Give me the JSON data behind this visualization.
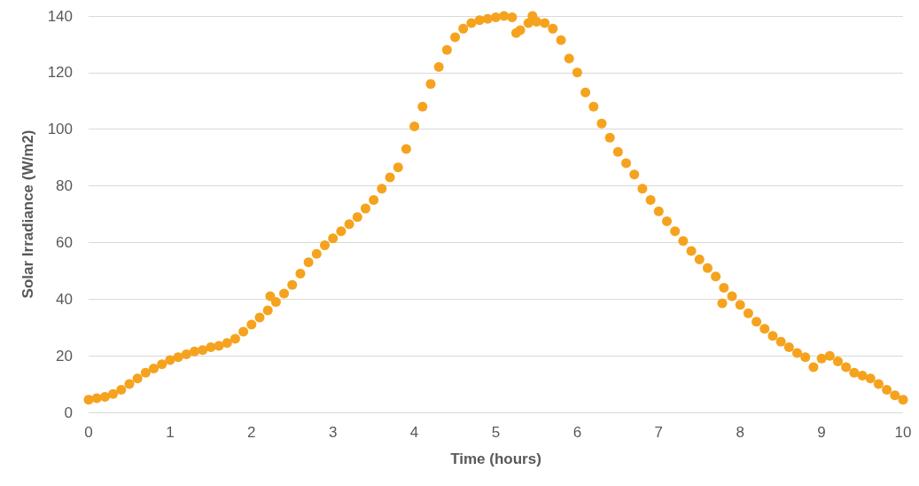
{
  "chart_data": {
    "type": "scatter",
    "xlabel": "Time (hours)",
    "ylabel": "Solar Irradiance (W/m2)",
    "marker": "circle",
    "grid": "y",
    "xlim": [
      0,
      10
    ],
    "xticks": [
      0,
      1,
      2,
      3,
      4,
      5,
      6,
      7,
      8,
      9,
      10
    ],
    "ylim": [
      0,
      140
    ],
    "yticks": [
      0,
      20,
      40,
      60,
      80,
      100,
      120,
      140
    ],
    "series": [
      {
        "color": "#f5a31e",
        "x": [
          0,
          0.1,
          0.2,
          0.3,
          0.4,
          0.5,
          0.6,
          0.7,
          0.8,
          0.9,
          1,
          1.1,
          1.2,
          1.3,
          1.4,
          1.5,
          1.6,
          1.7,
          1.8,
          1.9,
          2,
          2.1,
          2.2,
          2.23,
          2.3,
          2.4,
          2.5,
          2.6,
          2.7,
          2.8,
          2.9,
          3,
          3.1,
          3.2,
          3.3,
          3.4,
          3.5,
          3.6,
          3.7,
          3.8,
          3.9,
          4,
          4.1,
          4.2,
          4.3,
          4.4,
          4.5,
          4.6,
          4.7,
          4.8,
          4.9,
          5,
          5.1,
          5.2,
          5.25,
          5.3,
          5.4,
          5.45,
          5.5,
          5.6,
          5.7,
          5.8,
          5.9,
          6,
          6.1,
          6.2,
          6.3,
          6.4,
          6.5,
          6.6,
          6.7,
          6.8,
          6.9,
          7,
          7.1,
          7.2,
          7.3,
          7.4,
          7.5,
          7.6,
          7.7,
          7.78,
          7.8,
          7.9,
          8,
          8.1,
          8.2,
          8.3,
          8.4,
          8.5,
          8.6,
          8.7,
          8.8,
          8.9,
          9,
          9.1,
          9.2,
          9.3,
          9.4,
          9.5,
          9.6,
          9.7,
          9.8,
          9.9,
          10
        ],
        "values": [
          4.5,
          5,
          5.5,
          6.5,
          8,
          10,
          12,
          14,
          15.5,
          17,
          18.5,
          19.5,
          20.5,
          21.5,
          22,
          23,
          23.5,
          24.5,
          26,
          28.5,
          31,
          33.5,
          36,
          41,
          39,
          42,
          45,
          49,
          53,
          56,
          59,
          61.5,
          64,
          66.5,
          69,
          72,
          75,
          79,
          83,
          86.5,
          93,
          101,
          108,
          116,
          122,
          128,
          132.5,
          135.5,
          137.5,
          138.5,
          139,
          139.5,
          140,
          139.5,
          134,
          135,
          137.5,
          140,
          138,
          137.5,
          135.5,
          131.5,
          125,
          120,
          113,
          108,
          102,
          97,
          92,
          88,
          84,
          79,
          75,
          71,
          67.5,
          64,
          60.5,
          57,
          54,
          51,
          48,
          38.5,
          44,
          41,
          38,
          35,
          32,
          29.5,
          27,
          25,
          23,
          21,
          19.5,
          16,
          19,
          20,
          18,
          16,
          14,
          13,
          12,
          10,
          8,
          6,
          4.5
        ]
      }
    ]
  }
}
